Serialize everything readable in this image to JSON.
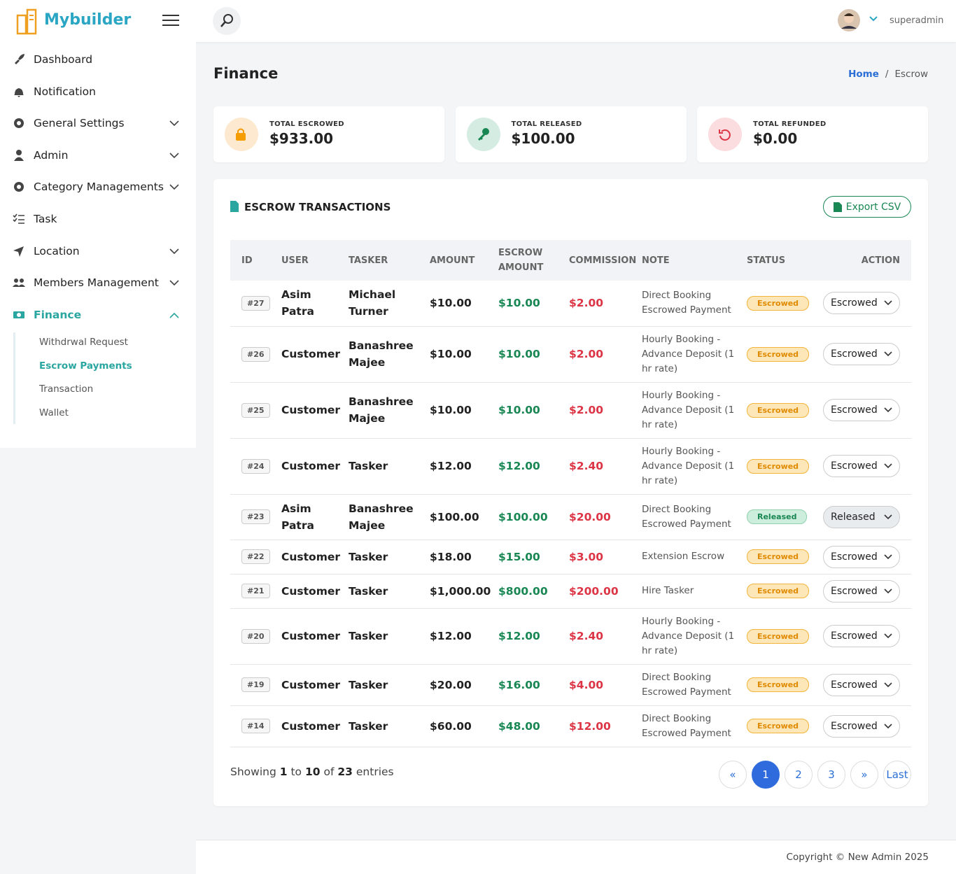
{
  "header": {
    "brand": "Mybuilder",
    "user": "superadmin"
  },
  "sidebar": {
    "items": [
      "Dashboard",
      "Notification",
      "General Settings",
      "Admin",
      "Category Managements",
      "Task",
      "Location",
      "Members Management",
      "Finance"
    ],
    "submenu": [
      "Withdrwal Request",
      "Escrow Payments",
      "Transaction",
      "Wallet"
    ]
  },
  "page": {
    "title": "Finance",
    "breadcrumb": [
      "Home",
      "Escrow"
    ]
  },
  "stats": [
    {
      "label": "TOTAL ESCROWED",
      "value": "$933.00"
    },
    {
      "label": "TOTAL RELEASED",
      "value": "$100.00"
    },
    {
      "label": "TOTAL REFUNDED",
      "value": "$0.00"
    }
  ],
  "table": {
    "title": "ESCROW TRANSACTIONS",
    "export": "Export CSV",
    "headers": [
      "ID",
      "USER",
      "TASKER",
      "AMOUNT",
      "ESCROW AMOUNT",
      "COMMISSION",
      "NOTE",
      "STATUS",
      "ACTION"
    ],
    "rows": [
      [
        "#27",
        "Asim Patra",
        "Michael Turner",
        "$10.00",
        "$10.00",
        "$2.00",
        "Direct Booking Escrowed Payment",
        "Escrowed",
        "Escrowed"
      ],
      [
        "#26",
        "Customer",
        "Banashree Majee",
        "$10.00",
        "$10.00",
        "$2.00",
        "Hourly Booking - Advance Deposit (1 hr rate)",
        "Escrowed",
        "Escrowed"
      ],
      [
        "#25",
        "Customer",
        "Banashree Majee",
        "$10.00",
        "$10.00",
        "$2.00",
        "Hourly Booking - Advance Deposit (1 hr rate)",
        "Escrowed",
        "Escrowed"
      ],
      [
        "#24",
        "Customer",
        "Tasker",
        "$12.00",
        "$12.00",
        "$2.40",
        "Hourly Booking - Advance Deposit (1 hr rate)",
        "Escrowed",
        "Escrowed"
      ],
      [
        "#23",
        "Asim Patra",
        "Banashree Majee",
        "$100.00",
        "$100.00",
        "$20.00",
        "Direct Booking Escrowed Payment",
        "Released",
        "Released"
      ],
      [
        "#22",
        "Customer",
        "Tasker",
        "$18.00",
        "$15.00",
        "$3.00",
        "Extension Escrow",
        "Escrowed",
        "Escrowed"
      ],
      [
        "#21",
        "Customer",
        "Tasker",
        "$1,000.00",
        "$800.00",
        "$200.00",
        "Hire Tasker",
        "Escrowed",
        "Escrowed"
      ],
      [
        "#20",
        "Customer",
        "Tasker",
        "$12.00",
        "$12.00",
        "$2.40",
        "Hourly Booking - Advance Deposit (1 hr rate)",
        "Escrowed",
        "Escrowed"
      ],
      [
        "#19",
        "Customer",
        "Tasker",
        "$20.00",
        "$16.00",
        "$4.00",
        "Direct Booking Escrowed Payment",
        "Escrowed",
        "Escrowed"
      ],
      [
        "#14",
        "Customer",
        "Tasker",
        "$60.00",
        "$48.00",
        "$12.00",
        "Direct Booking Escrowed Payment",
        "Escrowed",
        "Escrowed"
      ]
    ]
  },
  "footer": {
    "info": [
      "Showing",
      "1",
      "to",
      "10",
      "of",
      "23",
      "entries"
    ],
    "pagination": [
      "«",
      "1",
      "2",
      "3",
      "»",
      "Last"
    ],
    "copyright": "Copyright © New Admin 2025"
  }
}
